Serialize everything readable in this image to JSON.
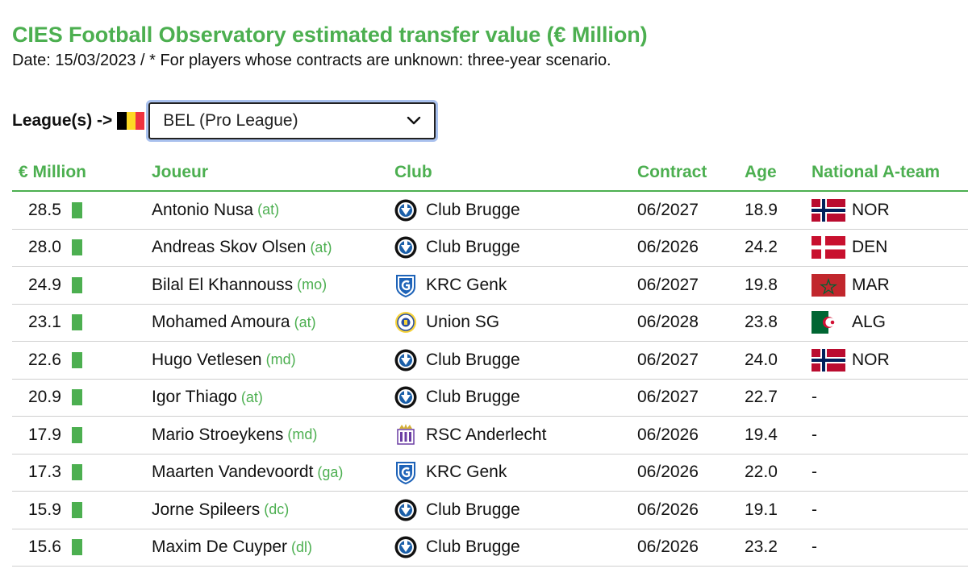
{
  "title": "CIES Football Observatory estimated transfer value (€ Million)",
  "subtitle": "Date: 15/03/2023 / * For players whose contracts are unknown: three-year scenario.",
  "league": {
    "label": "League(s) ->",
    "selected": "BEL (Pro League)",
    "flag_colors": [
      "#000000",
      "#FDDA24",
      "#EF3340"
    ]
  },
  "columns": {
    "value": "€ Million",
    "player": "Joueur",
    "club": "Club",
    "contract": "Contract",
    "age": "Age",
    "national": "National A-team"
  },
  "accent_color": "#4caf50",
  "rows": [
    {
      "value": "28.5",
      "player": "Antonio Nusa",
      "pos": "(at)",
      "club": "Club Brugge",
      "crest": "club-brugge-crest",
      "contract": "06/2027",
      "age": "18.9",
      "nat": "NOR",
      "flag": "norway-flag"
    },
    {
      "value": "28.0",
      "player": "Andreas Skov Olsen",
      "pos": "(at)",
      "club": "Club Brugge",
      "crest": "club-brugge-crest",
      "contract": "06/2026",
      "age": "24.2",
      "nat": "DEN",
      "flag": "denmark-flag"
    },
    {
      "value": "24.9",
      "player": "Bilal El Khannouss",
      "pos": "(mo)",
      "club": "KRC Genk",
      "crest": "krc-genk-crest",
      "contract": "06/2027",
      "age": "19.8",
      "nat": "MAR",
      "flag": "morocco-flag"
    },
    {
      "value": "23.1",
      "player": "Mohamed Amoura",
      "pos": "(at)",
      "club": "Union SG",
      "crest": "union-sg-crest",
      "contract": "06/2028",
      "age": "23.8",
      "nat": "ALG",
      "flag": "algeria-flag"
    },
    {
      "value": "22.6",
      "player": "Hugo Vetlesen",
      "pos": "(md)",
      "club": "Club Brugge",
      "crest": "club-brugge-crest",
      "contract": "06/2027",
      "age": "24.0",
      "nat": "NOR",
      "flag": "norway-flag"
    },
    {
      "value": "20.9",
      "player": "Igor Thiago",
      "pos": "(at)",
      "club": "Club Brugge",
      "crest": "club-brugge-crest",
      "contract": "06/2027",
      "age": "22.7",
      "nat": "-",
      "flag": ""
    },
    {
      "value": "17.9",
      "player": "Mario Stroeykens",
      "pos": "(md)",
      "club": "RSC Anderlecht",
      "crest": "rsc-anderlecht-crest",
      "contract": "06/2026",
      "age": "19.4",
      "nat": "-",
      "flag": ""
    },
    {
      "value": "17.3",
      "player": "Maarten Vandevoordt",
      "pos": "(ga)",
      "club": "KRC Genk",
      "crest": "krc-genk-crest",
      "contract": "06/2026",
      "age": "22.0",
      "nat": "-",
      "flag": ""
    },
    {
      "value": "15.9",
      "player": "Jorne Spileers",
      "pos": "(dc)",
      "club": "Club Brugge",
      "crest": "club-brugge-crest",
      "contract": "06/2026",
      "age": "19.1",
      "nat": "-",
      "flag": ""
    },
    {
      "value": "15.6",
      "player": "Maxim De Cuyper",
      "pos": "(dl)",
      "club": "Club Brugge",
      "crest": "club-brugge-crest",
      "contract": "06/2026",
      "age": "23.2",
      "nat": "-",
      "flag": ""
    }
  ]
}
